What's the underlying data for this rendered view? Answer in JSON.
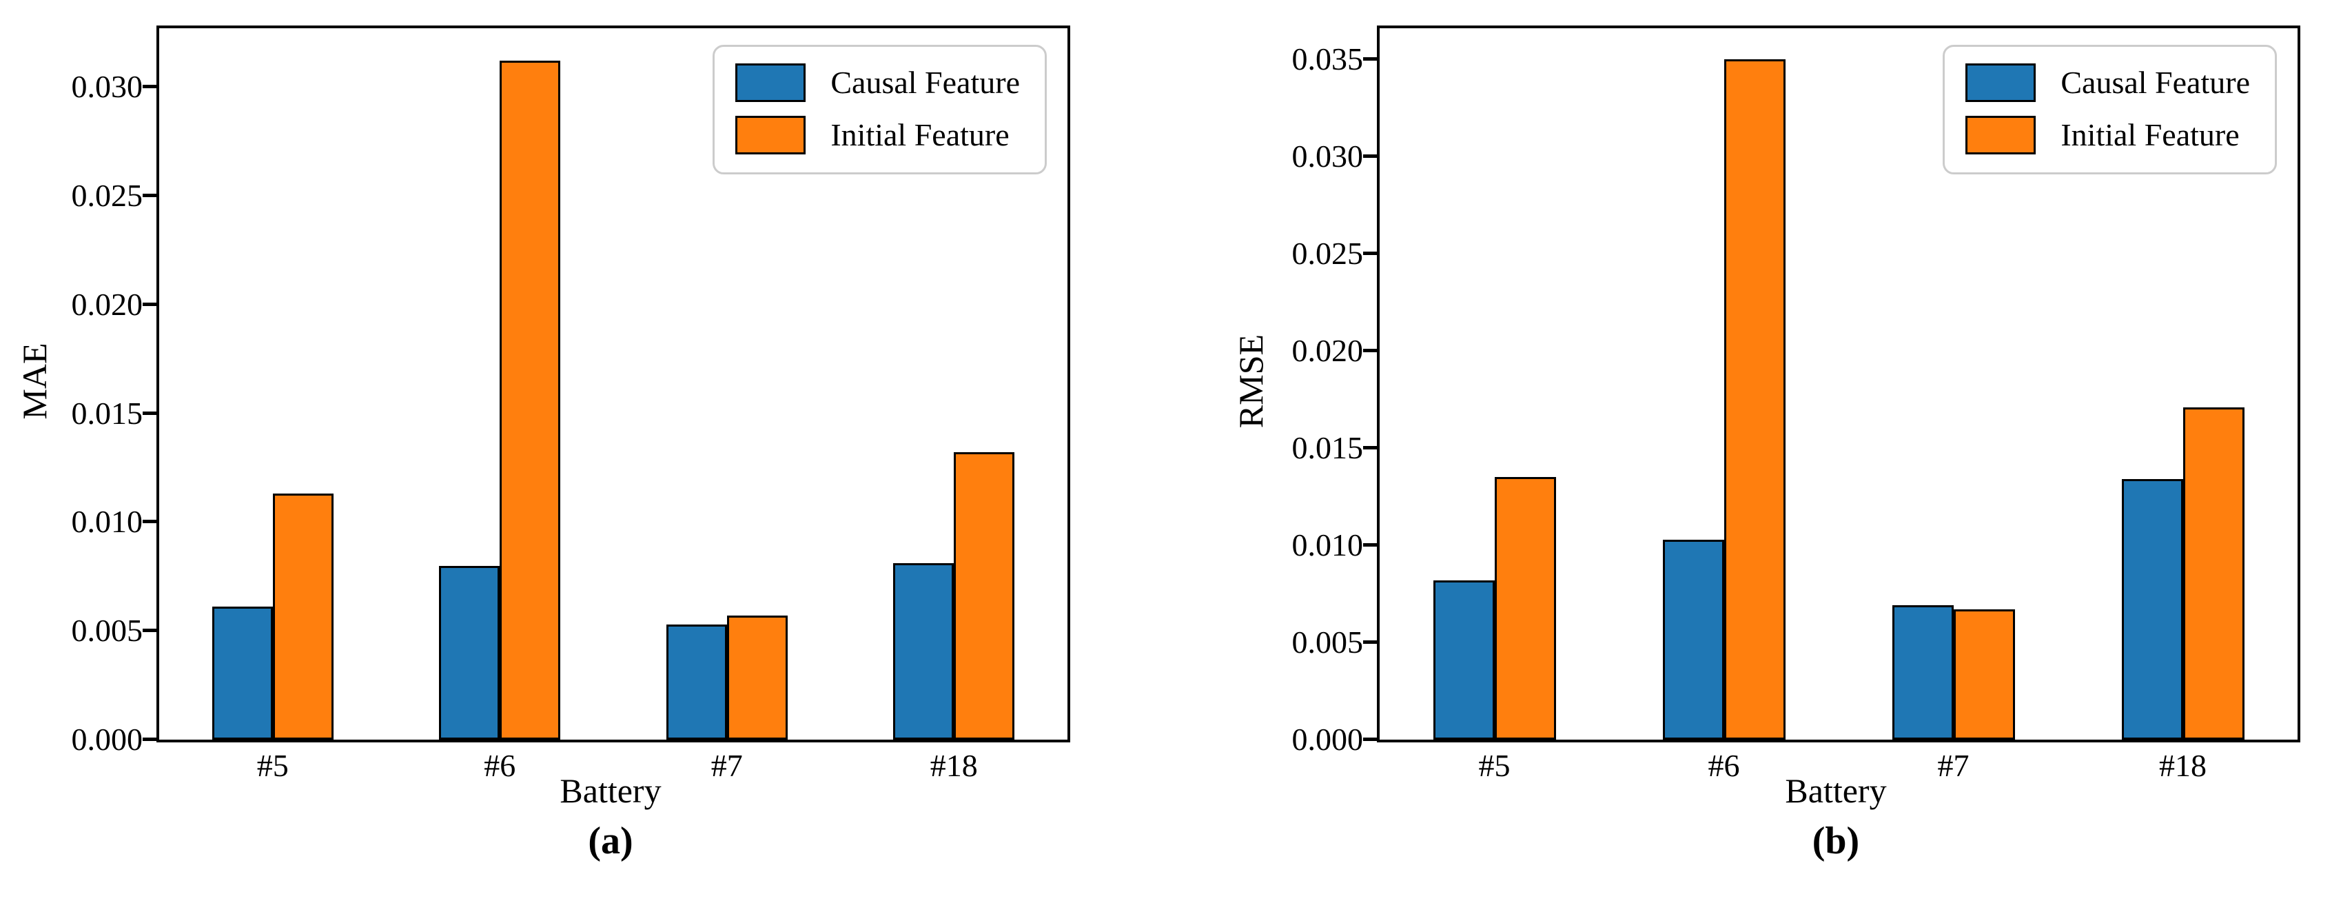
{
  "chart_data": [
    {
      "type": "bar",
      "panel": "a",
      "caption": "(a)",
      "xlabel": "Battery",
      "ylabel": "MAE",
      "categories": [
        "#5",
        "#6",
        "#7",
        "#18"
      ],
      "series": [
        {
          "name": "Causal Feature",
          "color": "#1f77b4",
          "values": [
            0.0061,
            0.008,
            0.0053,
            0.0081
          ]
        },
        {
          "name": "Initial Feature",
          "color": "#ff7f0e",
          "values": [
            0.0113,
            0.0312,
            0.0057,
            0.0132
          ]
        }
      ],
      "ytick_labels": [
        "0.000",
        "0.005",
        "0.010",
        "0.015",
        "0.020",
        "0.025",
        "0.030"
      ],
      "ylim": [
        0,
        0.0327
      ],
      "grid": false,
      "legend_position": "upper right"
    },
    {
      "type": "bar",
      "panel": "b",
      "caption": "(b)",
      "xlabel": "Battery",
      "ylabel": "RMSE",
      "categories": [
        "#5",
        "#6",
        "#7",
        "#18"
      ],
      "series": [
        {
          "name": "Causal Feature",
          "color": "#1f77b4",
          "values": [
            0.0082,
            0.0103,
            0.0069,
            0.0134
          ]
        },
        {
          "name": "Initial Feature",
          "color": "#ff7f0e",
          "values": [
            0.0135,
            0.035,
            0.0067,
            0.0171
          ]
        }
      ],
      "ytick_labels": [
        "0.000",
        "0.005",
        "0.010",
        "0.015",
        "0.020",
        "0.025",
        "0.030",
        "0.035"
      ],
      "ylim": [
        0,
        0.0366
      ],
      "grid": false,
      "legend_position": "upper right"
    }
  ]
}
